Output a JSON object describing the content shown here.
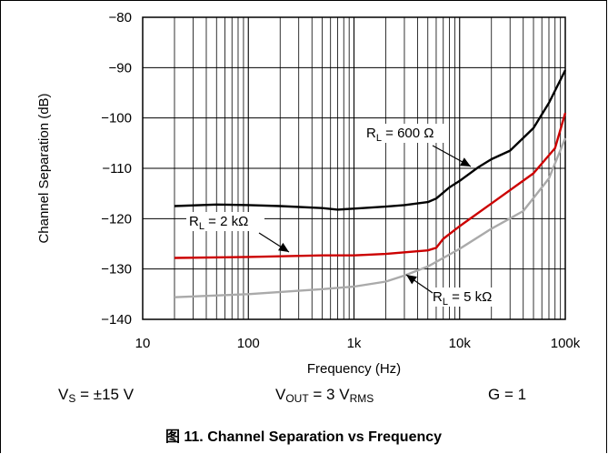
{
  "chart_data": {
    "type": "line",
    "xscale": "log",
    "xlim": [
      10,
      100000
    ],
    "ylim": [
      -140,
      -80
    ],
    "grid": true,
    "x_ticks": [
      "10",
      "100",
      "1k",
      "10k",
      "100k"
    ],
    "y_ticks": [
      "−80",
      "−90",
      "−100",
      "−110",
      "−120",
      "−130",
      "−140"
    ],
    "xlabel": "Frequency (Hz)",
    "ylabel": "Channel Separation (dB)",
    "series": [
      {
        "name": "RL = 600 Ω",
        "color": "#000000",
        "x": [
          20,
          50,
          100,
          200,
          500,
          700,
          1000,
          2000,
          3000,
          5000,
          6000,
          8000,
          10000,
          15000,
          20000,
          30000,
          50000,
          70000,
          100000
        ],
        "y": [
          -117.5,
          -117.2,
          -117.3,
          -117.5,
          -117.9,
          -118.2,
          -118.0,
          -117.6,
          -117.3,
          -116.7,
          -116.0,
          -113.8,
          -112.5,
          -109.8,
          -108.2,
          -106.5,
          -102.0,
          -97.0,
          -90.5
        ]
      },
      {
        "name": "RL = 2 kΩ",
        "color": "#cc0000",
        "x": [
          20,
          100,
          500,
          1000,
          2000,
          5000,
          6000,
          7000,
          10000,
          20000,
          50000,
          80000,
          100000
        ],
        "y": [
          -127.8,
          -127.6,
          -127.3,
          -127.3,
          -127.0,
          -126.3,
          -125.8,
          -124.0,
          -121.5,
          -117.0,
          -111.0,
          -106.0,
          -99.0
        ]
      },
      {
        "name": "RL = 5 kΩ",
        "color": "#aaaaaa",
        "x": [
          20,
          100,
          500,
          1000,
          2000,
          3000,
          5000,
          10000,
          20000,
          40000,
          70000,
          100000
        ],
        "y": [
          -135.6,
          -135.0,
          -134.0,
          -133.5,
          -132.5,
          -131.3,
          -129.5,
          -126.0,
          -122.0,
          -118.5,
          -112.0,
          -104.0
        ]
      }
    ],
    "annotations": [
      {
        "text_main": "R",
        "text_sub": "L",
        "text_rest": " = 600 Ω",
        "series": 0
      },
      {
        "text_main": "R",
        "text_sub": "L",
        "text_rest": " = 2 kΩ",
        "series": 1
      },
      {
        "text_main": "R",
        "text_sub": "L",
        "text_rest": " = 5 kΩ",
        "series": 2
      }
    ]
  },
  "conditions": {
    "vs_main": "V",
    "vs_sub": "S",
    "vs_rest": " = ±15 V",
    "vout_main": "V",
    "vout_sub": "OUT",
    "vout_mid": " = 3 V",
    "vout_sub2": "RMS",
    "gain": "G = 1"
  },
  "caption": "图 11. Channel Separation vs Frequency"
}
